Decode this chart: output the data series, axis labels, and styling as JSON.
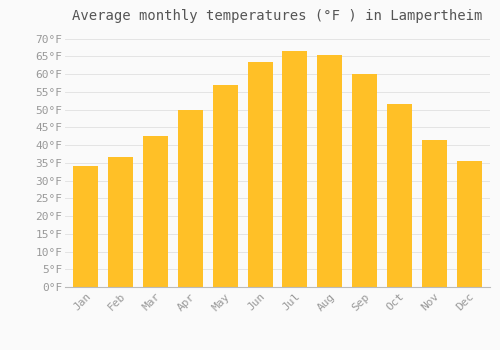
{
  "title": "Average monthly temperatures (°F ) in Lampertheim",
  "months": [
    "Jan",
    "Feb",
    "Mar",
    "Apr",
    "May",
    "Jun",
    "Jul",
    "Aug",
    "Sep",
    "Oct",
    "Nov",
    "Dec"
  ],
  "values": [
    34,
    36.5,
    42.5,
    50,
    57,
    63.5,
    66.5,
    65.5,
    60,
    51.5,
    41.5,
    35.5
  ],
  "bar_color_top": "#FFC027",
  "bar_color_bottom": "#F5A800",
  "background_color": "#FAFAFA",
  "grid_color": "#E0E0E0",
  "ylim_min": 0,
  "ylim_max": 70,
  "ytick_step": 5,
  "title_fontsize": 10,
  "tick_fontsize": 8,
  "tick_color": "#999999",
  "title_color": "#555555"
}
